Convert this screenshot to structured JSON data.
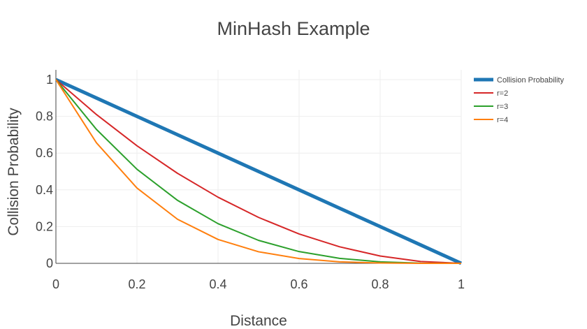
{
  "chart_data": {
    "type": "line",
    "title": "MinHash Example",
    "xlabel": "Distance",
    "ylabel": "Collision Probability",
    "xlim": [
      0,
      1
    ],
    "ylim": [
      0,
      1
    ],
    "x_ticks": [
      "0",
      "0.2",
      "0.4",
      "0.6",
      "0.8",
      "1"
    ],
    "y_ticks": [
      "0",
      "0.2",
      "0.4",
      "0.6",
      "0.8",
      "1"
    ],
    "grid": true,
    "legend_position": "top-right",
    "x": [
      0,
      0.1,
      0.2,
      0.3,
      0.4,
      0.5,
      0.6,
      0.7,
      0.8,
      0.9,
      1.0
    ],
    "series": [
      {
        "name": "Collision Probability",
        "color": "#1f77b4",
        "values": [
          1,
          0.9,
          0.8,
          0.7,
          0.6,
          0.5,
          0.4,
          0.3,
          0.2,
          0.1,
          0
        ]
      },
      {
        "name": "r=2",
        "color": "#d62728",
        "values": [
          1,
          0.81,
          0.64,
          0.49,
          0.36,
          0.25,
          0.16,
          0.09,
          0.04,
          0.01,
          0
        ]
      },
      {
        "name": "r=3",
        "color": "#2ca02c",
        "values": [
          1,
          0.729,
          0.512,
          0.343,
          0.216,
          0.125,
          0.064,
          0.027,
          0.008,
          0.001,
          0
        ]
      },
      {
        "name": "r=4",
        "color": "#ff7f0e",
        "values": [
          1,
          0.656,
          0.41,
          0.24,
          0.13,
          0.063,
          0.026,
          0.008,
          0.002,
          0.0001,
          0
        ]
      }
    ]
  }
}
